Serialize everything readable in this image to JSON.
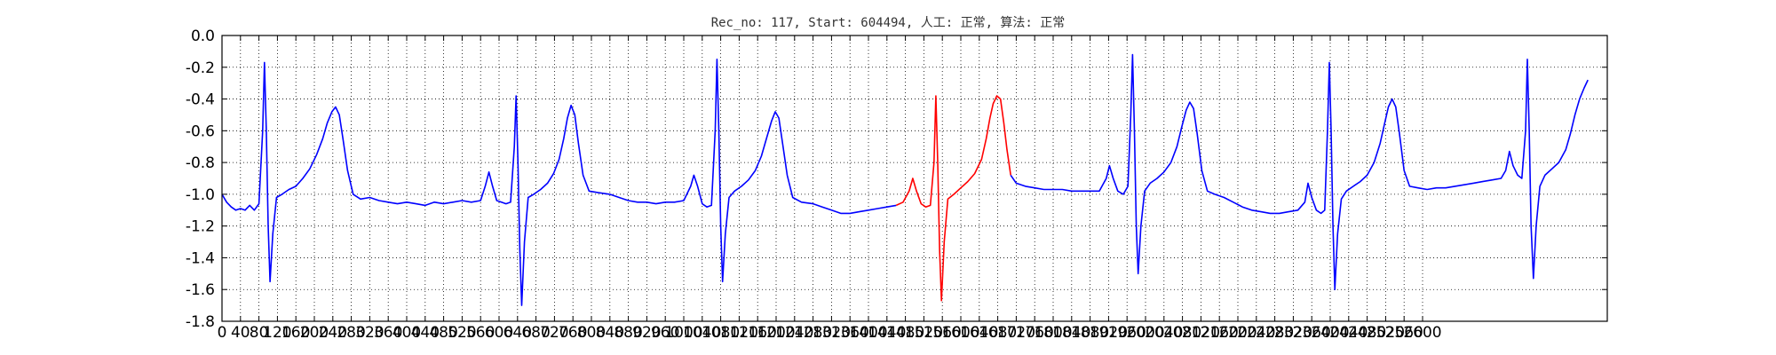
{
  "chart_data": {
    "type": "line",
    "title": "Rec_no: 117, Start: 604494, 人工: 正常, 算法: 正常",
    "xlabel": "",
    "ylabel": "",
    "xlim": [
      0,
      3000
    ],
    "ylim": [
      -1.8,
      0.0
    ],
    "grid": true,
    "x_tick_labels": [
      "0",
      "40",
      "80",
      "120",
      "160",
      "200",
      "240",
      "280",
      "320",
      "360",
      "400",
      "440",
      "480",
      "520",
      "560",
      "600",
      "640",
      "680",
      "720",
      "760",
      "800",
      "840",
      "880",
      "920",
      "960",
      "1000",
      "1040",
      "1080",
      "1120",
      "1160",
      "1200",
      "1240",
      "1280",
      "1320",
      "1360",
      "1400",
      "1440",
      "1480",
      "1520",
      "1560",
      "1600",
      "1640",
      "1680",
      "1720",
      "1760",
      "1800",
      "1840",
      "1880",
      "1920",
      "1960",
      "2000",
      "2040",
      "2080",
      "2120",
      "2160",
      "2200",
      "2240",
      "2280",
      "2320",
      "2360",
      "2400",
      "2440",
      "2480",
      "2520",
      "2560",
      "2600"
    ],
    "y_tick_labels": [
      "0.0",
      "-0.2",
      "-0.4",
      "-0.6",
      "-0.8",
      "-1.0",
      "-1.2",
      "-1.4",
      "-1.6",
      "-1.8"
    ],
    "series": [
      {
        "color": "#0000ff",
        "points": [
          [
            0,
            -1.0
          ],
          [
            10,
            -1.05
          ],
          [
            20,
            -1.08
          ],
          [
            30,
            -1.1
          ],
          [
            40,
            -1.09
          ],
          [
            50,
            -1.1
          ],
          [
            60,
            -1.07
          ],
          [
            70,
            -1.1
          ],
          [
            80,
            -1.06
          ],
          [
            88,
            -0.6
          ],
          [
            92,
            -0.17
          ],
          [
            96,
            -0.6
          ],
          [
            100,
            -1.2
          ],
          [
            104,
            -1.55
          ],
          [
            110,
            -1.25
          ],
          [
            118,
            -1.02
          ],
          [
            130,
            -1.0
          ],
          [
            145,
            -0.97
          ],
          [
            160,
            -0.95
          ],
          [
            175,
            -0.9
          ],
          [
            190,
            -0.84
          ],
          [
            205,
            -0.75
          ],
          [
            218,
            -0.65
          ],
          [
            228,
            -0.55
          ],
          [
            238,
            -0.48
          ],
          [
            246,
            -0.45
          ],
          [
            254,
            -0.5
          ],
          [
            262,
            -0.65
          ],
          [
            272,
            -0.85
          ],
          [
            284,
            -1.0
          ],
          [
            300,
            -1.03
          ],
          [
            320,
            -1.02
          ],
          [
            340,
            -1.04
          ],
          [
            360,
            -1.05
          ],
          [
            380,
            -1.06
          ],
          [
            400,
            -1.05
          ],
          [
            420,
            -1.06
          ],
          [
            440,
            -1.07
          ],
          [
            460,
            -1.05
          ],
          [
            480,
            -1.06
          ],
          [
            500,
            -1.05
          ],
          [
            520,
            -1.04
          ],
          [
            540,
            -1.05
          ],
          [
            560,
            -1.04
          ],
          [
            570,
            -0.95
          ],
          [
            578,
            -0.86
          ],
          [
            586,
            -0.95
          ],
          [
            595,
            -1.04
          ],
          [
            605,
            -1.05
          ],
          [
            615,
            -1.06
          ],
          [
            625,
            -1.05
          ],
          [
            633,
            -0.7
          ],
          [
            637,
            -0.38
          ],
          [
            641,
            -0.8
          ],
          [
            645,
            -1.35
          ],
          [
            649,
            -1.7
          ],
          [
            655,
            -1.3
          ],
          [
            663,
            -1.02
          ],
          [
            675,
            -1.0
          ],
          [
            690,
            -0.97
          ],
          [
            705,
            -0.93
          ],
          [
            718,
            -0.87
          ],
          [
            730,
            -0.78
          ],
          [
            740,
            -0.65
          ],
          [
            748,
            -0.52
          ],
          [
            756,
            -0.44
          ],
          [
            764,
            -0.5
          ],
          [
            772,
            -0.68
          ],
          [
            782,
            -0.88
          ],
          [
            795,
            -0.98
          ],
          [
            815,
            -0.99
          ],
          [
            840,
            -1.0
          ],
          [
            860,
            -1.02
          ],
          [
            880,
            -1.04
          ],
          [
            900,
            -1.05
          ],
          [
            920,
            -1.05
          ],
          [
            940,
            -1.06
          ],
          [
            960,
            -1.05
          ],
          [
            980,
            -1.05
          ],
          [
            1000,
            -1.04
          ],
          [
            1015,
            -0.95
          ],
          [
            1022,
            -0.88
          ],
          [
            1030,
            -0.95
          ],
          [
            1040,
            -1.06
          ],
          [
            1050,
            -1.08
          ],
          [
            1060,
            -1.07
          ],
          [
            1068,
            -0.6
          ],
          [
            1072,
            -0.15
          ],
          [
            1076,
            -0.6
          ],
          [
            1080,
            -1.2
          ],
          [
            1084,
            -1.55
          ],
          [
            1090,
            -1.25
          ],
          [
            1098,
            -1.02
          ],
          [
            1110,
            -0.98
          ],
          [
            1125,
            -0.95
          ],
          [
            1140,
            -0.91
          ],
          [
            1155,
            -0.85
          ],
          [
            1168,
            -0.76
          ],
          [
            1180,
            -0.64
          ],
          [
            1190,
            -0.54
          ],
          [
            1198,
            -0.48
          ],
          [
            1206,
            -0.52
          ],
          [
            1214,
            -0.68
          ],
          [
            1224,
            -0.88
          ],
          [
            1236,
            -1.02
          ],
          [
            1255,
            -1.05
          ],
          [
            1280,
            -1.06
          ],
          [
            1300,
            -1.08
          ],
          [
            1320,
            -1.1
          ],
          [
            1340,
            -1.12
          ],
          [
            1360,
            -1.12
          ],
          [
            1380,
            -1.11
          ],
          [
            1400,
            -1.1
          ],
          [
            1420,
            -1.09
          ],
          [
            1440,
            -1.08
          ],
          [
            1460,
            -1.07
          ]
        ]
      },
      {
        "color": "#ff0000",
        "points": [
          [
            1460,
            -1.07
          ],
          [
            1475,
            -1.05
          ],
          [
            1488,
            -0.98
          ],
          [
            1496,
            -0.9
          ],
          [
            1504,
            -0.98
          ],
          [
            1514,
            -1.06
          ],
          [
            1524,
            -1.08
          ],
          [
            1534,
            -1.07
          ],
          [
            1542,
            -0.8
          ],
          [
            1546,
            -0.38
          ],
          [
            1550,
            -0.8
          ],
          [
            1554,
            -1.35
          ],
          [
            1558,
            -1.67
          ],
          [
            1564,
            -1.3
          ],
          [
            1572,
            -1.03
          ],
          [
            1585,
            -1.0
          ],
          [
            1600,
            -0.96
          ],
          [
            1615,
            -0.92
          ],
          [
            1630,
            -0.87
          ],
          [
            1645,
            -0.78
          ],
          [
            1655,
            -0.65
          ],
          [
            1663,
            -0.52
          ],
          [
            1670,
            -0.43
          ],
          [
            1678,
            -0.38
          ],
          [
            1686,
            -0.4
          ],
          [
            1693,
            -0.55
          ],
          [
            1700,
            -0.72
          ],
          [
            1708,
            -0.88
          ]
        ]
      },
      {
        "color": "#0000ff",
        "points": [
          [
            1708,
            -0.88
          ],
          [
            1720,
            -0.93
          ],
          [
            1740,
            -0.95
          ],
          [
            1760,
            -0.96
          ],
          [
            1780,
            -0.97
          ],
          [
            1800,
            -0.97
          ],
          [
            1820,
            -0.97
          ],
          [
            1840,
            -0.98
          ],
          [
            1860,
            -0.98
          ],
          [
            1880,
            -0.98
          ],
          [
            1900,
            -0.98
          ],
          [
            1915,
            -0.9
          ],
          [
            1922,
            -0.82
          ],
          [
            1930,
            -0.9
          ],
          [
            1940,
            -0.98
          ],
          [
            1952,
            -1.0
          ],
          [
            1962,
            -0.95
          ],
          [
            1968,
            -0.5
          ],
          [
            1972,
            -0.12
          ],
          [
            1976,
            -0.6
          ],
          [
            1980,
            -1.2
          ],
          [
            1984,
            -1.5
          ],
          [
            1990,
            -1.2
          ],
          [
            1998,
            -0.98
          ],
          [
            2010,
            -0.93
          ],
          [
            2025,
            -0.9
          ],
          [
            2040,
            -0.86
          ],
          [
            2055,
            -0.8
          ],
          [
            2068,
            -0.7
          ],
          [
            2078,
            -0.58
          ],
          [
            2088,
            -0.47
          ],
          [
            2096,
            -0.42
          ],
          [
            2104,
            -0.46
          ],
          [
            2112,
            -0.62
          ],
          [
            2122,
            -0.85
          ],
          [
            2134,
            -0.98
          ],
          [
            2150,
            -1.0
          ],
          [
            2170,
            -1.02
          ],
          [
            2190,
            -1.05
          ],
          [
            2210,
            -1.08
          ],
          [
            2230,
            -1.1
          ],
          [
            2250,
            -1.11
          ],
          [
            2270,
            -1.12
          ],
          [
            2290,
            -1.12
          ],
          [
            2310,
            -1.11
          ],
          [
            2330,
            -1.1
          ],
          [
            2345,
            -1.05
          ],
          [
            2352,
            -0.93
          ],
          [
            2360,
            -1.02
          ],
          [
            2370,
            -1.1
          ],
          [
            2380,
            -1.12
          ],
          [
            2388,
            -1.1
          ],
          [
            2394,
            -0.6
          ],
          [
            2398,
            -0.17
          ],
          [
            2402,
            -0.6
          ],
          [
            2406,
            -1.2
          ],
          [
            2410,
            -1.6
          ],
          [
            2416,
            -1.25
          ],
          [
            2424,
            -1.03
          ],
          [
            2435,
            -0.98
          ],
          [
            2450,
            -0.95
          ],
          [
            2465,
            -0.92
          ],
          [
            2480,
            -0.88
          ],
          [
            2495,
            -0.8
          ],
          [
            2508,
            -0.68
          ],
          [
            2518,
            -0.55
          ],
          [
            2526,
            -0.45
          ],
          [
            2534,
            -0.4
          ],
          [
            2542,
            -0.45
          ],
          [
            2550,
            -0.62
          ],
          [
            2560,
            -0.85
          ],
          [
            2572,
            -0.95
          ],
          [
            2590,
            -0.96
          ],
          [
            2610,
            -0.97
          ],
          [
            2630,
            -0.96
          ],
          [
            2650,
            -0.96
          ],
          [
            2670,
            -0.95
          ],
          [
            2690,
            -0.94
          ],
          [
            2710,
            -0.93
          ],
          [
            2730,
            -0.92
          ],
          [
            2750,
            -0.91
          ],
          [
            2770,
            -0.9
          ],
          [
            2780,
            -0.85
          ],
          [
            2788,
            -0.73
          ],
          [
            2796,
            -0.82
          ],
          [
            2806,
            -0.88
          ],
          [
            2815,
            -0.9
          ],
          [
            2823,
            -0.6
          ],
          [
            2827,
            -0.15
          ],
          [
            2831,
            -0.6
          ],
          [
            2835,
            -1.2
          ],
          [
            2840,
            -1.53
          ],
          [
            2846,
            -1.2
          ],
          [
            2854,
            -0.95
          ],
          [
            2865,
            -0.88
          ],
          [
            2880,
            -0.84
          ],
          [
            2895,
            -0.8
          ],
          [
            2910,
            -0.72
          ],
          [
            2920,
            -0.62
          ],
          [
            2930,
            -0.5
          ],
          [
            2940,
            -0.4
          ],
          [
            2950,
            -0.33
          ],
          [
            2958,
            -0.28
          ]
        ]
      }
    ]
  }
}
